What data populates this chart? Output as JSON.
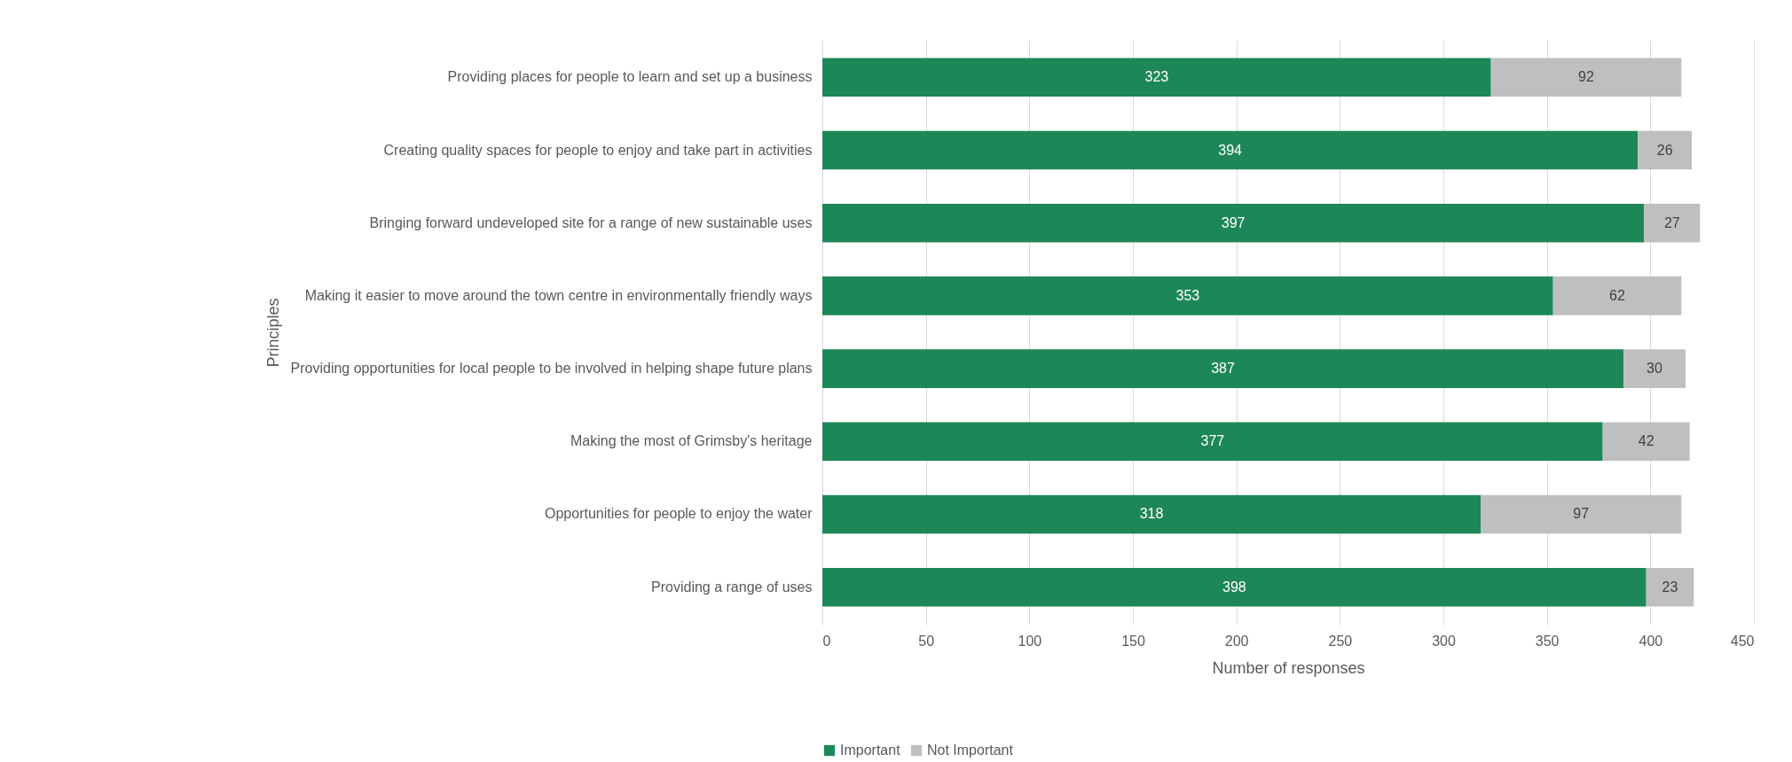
{
  "chart_data": {
    "type": "bar",
    "orientation": "horizontal",
    "stacked": true,
    "xlabel": "Number of responses",
    "ylabel": "Principles",
    "categories": [
      "Providing places for people to learn and set up a business",
      "Creating quality spaces for people to enjoy and take part in activities ",
      "Bringing forward undeveloped site for a range of new sustainable uses",
      "Making it easier to move around the town centre in environmentally friendly ways",
      "Providing opportunities for local people to be involved in helping shape future plans",
      "Making the most of Grimsby's heritage",
      "Opportunities for people to enjoy the water",
      "Providing a range of uses"
    ],
    "series": [
      {
        "name": "Important",
        "color": "#1e8757",
        "values": [
          323,
          394,
          397,
          353,
          387,
          377,
          318,
          398
        ]
      },
      {
        "name": "Not Important",
        "color": "#bfbfbf",
        "values": [
          92,
          26,
          27,
          62,
          30,
          42,
          97,
          23
        ]
      }
    ],
    "xlim": [
      0,
      450
    ],
    "xticks": [
      0,
      50,
      100,
      150,
      200,
      250,
      300,
      350,
      400,
      450
    ],
    "grid": "x",
    "legend": "bottom",
    "data_labels": true
  }
}
